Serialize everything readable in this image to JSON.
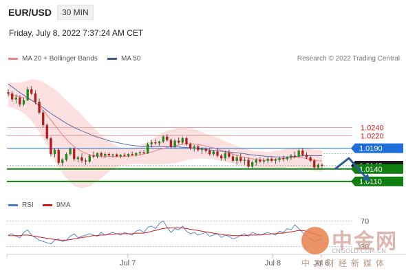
{
  "header": {
    "symbol": "EUR/USD",
    "timeframe": "30 MIN"
  },
  "datetime": "Friday, July 8, 2022 7:37:24 AM CET",
  "legend": {
    "bollinger": {
      "label": "MA 20 + Bollinger Bands",
      "color": "#f08080"
    },
    "ma50": {
      "label": "MA 50",
      "color": "#3a5a8c"
    }
  },
  "credit": "Research © 2022 Trading Central",
  "rsi_legend": {
    "rsi": {
      "label": "RSI",
      "color": "#4a7bd0"
    },
    "ma9": {
      "label": "9MA",
      "color": "#d11a1a"
    }
  },
  "watermark": {
    "text": "中金网",
    "url": "CNGOLD.COM.CN",
    "subtitle": "中文财经新媒体"
  },
  "chart_data": {
    "type": "candlestick",
    "ylim": [
      1.0075,
      1.0395
    ],
    "xlim": [
      0,
      100
    ],
    "x_ticks": [
      {
        "x": 35,
        "label": "Jul 7"
      },
      {
        "x": 77,
        "label": "Jul 8"
      },
      {
        "x": 91,
        "label": "Jul 8"
      }
    ],
    "levels": [
      {
        "name": "r2",
        "value": 1.024,
        "label": "1.0240",
        "color": "#d11a1a",
        "style": "red"
      },
      {
        "name": "r1",
        "value": 1.022,
        "label": "1.0220",
        "color": "#d11a1a",
        "style": "red"
      },
      {
        "name": "pivot",
        "value": 1.019,
        "label": "1.0190",
        "color": "#1e6fd9",
        "style": "blue"
      },
      {
        "name": "last",
        "value": 1.0148,
        "label": "1.0148",
        "color": "#111111",
        "style": "black"
      },
      {
        "name": "s1",
        "value": 1.014,
        "label": "1.0140",
        "color": "#0f7f0f",
        "style": "green"
      },
      {
        "name": "s2",
        "value": 1.011,
        "label": "1.0110",
        "color": "#0f7f0f",
        "style": "green"
      }
    ],
    "candles": [
      [
        1.0325,
        1.0333,
        1.0315,
        1.0322
      ],
      [
        1.0322,
        1.0328,
        1.0302,
        1.0308
      ],
      [
        1.0308,
        1.032,
        1.0298,
        1.0312
      ],
      [
        1.0312,
        1.0318,
        1.029,
        1.0296
      ],
      [
        1.0296,
        1.0312,
        1.0292,
        1.0306
      ],
      [
        1.0306,
        1.0338,
        1.0304,
        1.0332
      ],
      [
        1.0332,
        1.034,
        1.0318,
        1.0322
      ],
      [
        1.0322,
        1.033,
        1.0296,
        1.0302
      ],
      [
        1.0302,
        1.031,
        1.0272,
        1.0276
      ],
      [
        1.0276,
        1.0282,
        1.024,
        1.0246
      ],
      [
        1.0246,
        1.025,
        1.021,
        1.0214
      ],
      [
        1.0214,
        1.0218,
        1.017,
        1.0176
      ],
      [
        1.0176,
        1.019,
        1.0168,
        1.0186
      ],
      [
        1.0186,
        1.019,
        1.015,
        1.0155
      ],
      [
        1.0155,
        1.0166,
        1.0148,
        1.0162
      ],
      [
        1.0162,
        1.018,
        1.0158,
        1.0176
      ],
      [
        1.0176,
        1.0192,
        1.0172,
        1.0188
      ],
      [
        1.0188,
        1.0192,
        1.0158,
        1.0164
      ],
      [
        1.0164,
        1.0172,
        1.0156,
        1.0168
      ],
      [
        1.0168,
        1.0178,
        1.0155,
        1.016
      ],
      [
        1.016,
        1.0166,
        1.015,
        1.0158
      ],
      [
        1.0158,
        1.0176,
        1.0154,
        1.0172
      ],
      [
        1.0172,
        1.0182,
        1.0166,
        1.017
      ],
      [
        1.017,
        1.018,
        1.0166,
        1.0178
      ],
      [
        1.0178,
        1.0182,
        1.0168,
        1.0172
      ],
      [
        1.0172,
        1.018,
        1.0166,
        1.0176
      ],
      [
        1.0176,
        1.018,
        1.017,
        1.0173
      ],
      [
        1.0173,
        1.0177,
        1.0168,
        1.0175
      ],
      [
        1.0175,
        1.0178,
        1.0168,
        1.0171
      ],
      [
        1.0171,
        1.0176,
        1.0166,
        1.0174
      ],
      [
        1.0174,
        1.0179,
        1.017,
        1.0172
      ],
      [
        1.0172,
        1.0178,
        1.0168,
        1.0176
      ],
      [
        1.0176,
        1.0182,
        1.0172,
        1.0174
      ],
      [
        1.0174,
        1.018,
        1.017,
        1.0178
      ],
      [
        1.0178,
        1.0184,
        1.0174,
        1.018
      ],
      [
        1.018,
        1.0186,
        1.0176,
        1.0178
      ],
      [
        1.0178,
        1.0204,
        1.0176,
        1.02
      ],
      [
        1.02,
        1.021,
        1.0192,
        1.0204
      ],
      [
        1.0204,
        1.0212,
        1.0198,
        1.0202
      ],
      [
        1.0202,
        1.0208,
        1.0196,
        1.0206
      ],
      [
        1.0206,
        1.0222,
        1.0202,
        1.0218
      ],
      [
        1.0218,
        1.0224,
        1.0206,
        1.021
      ],
      [
        1.021,
        1.0214,
        1.019,
        1.0194
      ],
      [
        1.0194,
        1.0212,
        1.019,
        1.0208
      ],
      [
        1.0208,
        1.0216,
        1.02,
        1.0204
      ],
      [
        1.0204,
        1.0218,
        1.02,
        1.0214
      ],
      [
        1.0214,
        1.0218,
        1.0196,
        1.02
      ],
      [
        1.02,
        1.0204,
        1.0186,
        1.019
      ],
      [
        1.019,
        1.0198,
        1.0182,
        1.0194
      ],
      [
        1.0194,
        1.0198,
        1.0182,
        1.0186
      ],
      [
        1.0186,
        1.0192,
        1.0176,
        1.0188
      ],
      [
        1.0188,
        1.0192,
        1.018,
        1.0184
      ],
      [
        1.0184,
        1.019,
        1.0172,
        1.0176
      ],
      [
        1.0176,
        1.0186,
        1.0172,
        1.0182
      ],
      [
        1.0182,
        1.019,
        1.0168,
        1.0172
      ],
      [
        1.0172,
        1.0176,
        1.016,
        1.0166
      ],
      [
        1.0166,
        1.0184,
        1.016,
        1.0178
      ],
      [
        1.0178,
        1.0186,
        1.0166,
        1.017
      ],
      [
        1.017,
        1.0176,
        1.0156,
        1.016
      ],
      [
        1.016,
        1.0174,
        1.015,
        1.0168
      ],
      [
        1.0168,
        1.0178,
        1.0156,
        1.016
      ],
      [
        1.016,
        1.0168,
        1.015,
        1.0162
      ],
      [
        1.0162,
        1.0168,
        1.0142,
        1.0146
      ],
      [
        1.0146,
        1.016,
        1.0142,
        1.0156
      ],
      [
        1.0156,
        1.0166,
        1.0148,
        1.0162
      ],
      [
        1.0162,
        1.0168,
        1.0154,
        1.0158
      ],
      [
        1.0158,
        1.0166,
        1.0152,
        1.016
      ],
      [
        1.016,
        1.0168,
        1.0154,
        1.0164
      ],
      [
        1.0164,
        1.017,
        1.0156,
        1.016
      ],
      [
        1.016,
        1.0166,
        1.0152,
        1.0162
      ],
      [
        1.0162,
        1.017,
        1.0156,
        1.0166
      ],
      [
        1.0166,
        1.0172,
        1.0158,
        1.0164
      ],
      [
        1.0164,
        1.017,
        1.016,
        1.0168
      ],
      [
        1.0168,
        1.0176,
        1.0162,
        1.0172
      ],
      [
        1.0172,
        1.0182,
        1.0166,
        1.017
      ],
      [
        1.017,
        1.0188,
        1.0168,
        1.0184
      ],
      [
        1.0184,
        1.019,
        1.017,
        1.0174
      ],
      [
        1.0174,
        1.018,
        1.0164,
        1.0168
      ],
      [
        1.0168,
        1.0172,
        1.0156,
        1.016
      ],
      [
        1.016,
        1.0164,
        1.014,
        1.0144
      ],
      [
        1.0144,
        1.0154,
        1.014,
        1.015
      ],
      [
        1.015,
        1.0154,
        1.0142,
        1.0148
      ]
    ],
    "ma50": [
      1.0345,
      1.0338,
      1.0331,
      1.0324,
      1.0318,
      1.0312,
      1.0306,
      1.03,
      1.0294,
      1.0288,
      1.0281,
      1.0274,
      1.0268,
      1.0262,
      1.0256,
      1.025,
      1.0245,
      1.024,
      1.0236,
      1.0232,
      1.0228,
      1.0224,
      1.022,
      1.0217,
      1.0214,
      1.0211,
      1.0208,
      1.0206,
      1.0204,
      1.0202,
      1.02,
      1.0198,
      1.0197,
      1.0196,
      1.0195,
      1.0194,
      1.0194,
      1.0194,
      1.0194,
      1.0194,
      1.0194,
      1.0194,
      1.0193,
      1.0193,
      1.0193,
      1.0192,
      1.0192,
      1.0191,
      1.019,
      1.0189,
      1.0188,
      1.0187,
      1.0186,
      1.0185,
      1.0184,
      1.0183,
      1.0182,
      1.0181,
      1.018,
      1.0179,
      1.0178,
      1.0177,
      1.0175,
      1.0174,
      1.0173,
      1.0172,
      1.0171,
      1.017,
      1.017,
      1.0169,
      1.0169,
      1.0169,
      1.0169,
      1.017,
      1.017,
      1.0171,
      1.0172,
      1.0172,
      1.0172,
      1.0172,
      1.0172,
      1.0172
    ],
    "ma20": [
      1.032,
      1.0318,
      1.0316,
      1.0314,
      1.0312,
      1.031,
      1.0306,
      1.03,
      1.0292,
      1.0282,
      1.027,
      1.0258,
      1.0246,
      1.0234,
      1.0222,
      1.0212,
      1.0202,
      1.0194,
      1.0188,
      1.0182,
      1.0178,
      1.0174,
      1.0172,
      1.0171,
      1.017,
      1.017,
      1.017,
      1.017,
      1.017,
      1.017,
      1.017,
      1.0171,
      1.0172,
      1.0173,
      1.0174,
      1.0176,
      1.0178,
      1.0181,
      1.0184,
      1.0187,
      1.019,
      1.0192,
      1.0194,
      1.0196,
      1.0198,
      1.02,
      1.0201,
      1.0201,
      1.02,
      1.0199,
      1.0197,
      1.0195,
      1.0193,
      1.0191,
      1.0188,
      1.0185,
      1.0182,
      1.0179,
      1.0176,
      1.0173,
      1.017,
      1.0168,
      1.0166,
      1.0164,
      1.0163,
      1.0162,
      1.0161,
      1.0161,
      1.0162,
      1.0163,
      1.0164,
      1.0165,
      1.0166,
      1.0167,
      1.0168,
      1.0168,
      1.0167,
      1.0165,
      1.0163,
      1.0161,
      1.016,
      1.0159
    ],
    "bb_width": [
      0.003,
      0.003,
      0.0032,
      0.0034,
      0.0038,
      0.0044,
      0.005,
      0.0056,
      0.0062,
      0.0068,
      0.0074,
      0.008,
      0.0086,
      0.009,
      0.0092,
      0.0094,
      0.0095,
      0.0094,
      0.0092,
      0.0088,
      0.0082,
      0.0076,
      0.0068,
      0.006,
      0.0052,
      0.0044,
      0.0036,
      0.003,
      0.0026,
      0.0022,
      0.002,
      0.002,
      0.002,
      0.0021,
      0.0022,
      0.0024,
      0.0027,
      0.003,
      0.0033,
      0.0036,
      0.0038,
      0.004,
      0.0041,
      0.0042,
      0.0042,
      0.0041,
      0.004,
      0.0038,
      0.0036,
      0.0034,
      0.0032,
      0.003,
      0.0029,
      0.0028,
      0.0027,
      0.0026,
      0.0025,
      0.0024,
      0.0023,
      0.0022,
      0.0022,
      0.0021,
      0.0021,
      0.002,
      0.002,
      0.002,
      0.002,
      0.002,
      0.002,
      0.0021,
      0.0021,
      0.0022,
      0.0022,
      0.0023,
      0.0024,
      0.0024,
      0.0024,
      0.0025,
      0.0025,
      0.0026,
      0.0026,
      0.0026
    ],
    "forecast_path": [
      [
        95,
        1.014
      ],
      [
        99,
        1.0166
      ],
      [
        105,
        1.011
      ]
    ],
    "rsi_panel": {
      "ylim": [
        20,
        80
      ],
      "ticks": [
        {
          "value": 70,
          "label": "70"
        },
        {
          "value": 30,
          "label": "30"
        }
      ],
      "rsi": [
        48,
        50,
        46,
        44,
        52,
        56,
        48,
        44,
        40,
        38,
        36,
        34,
        40,
        42,
        38,
        40,
        46,
        50,
        44,
        46,
        48,
        50,
        48,
        46,
        52,
        48,
        50,
        52,
        50,
        48,
        52,
        50,
        48,
        54,
        56,
        52,
        60,
        62,
        58,
        66,
        70,
        60,
        52,
        58,
        56,
        62,
        54,
        50,
        52,
        48,
        50,
        52,
        46,
        48,
        50,
        44,
        48,
        46,
        42,
        44,
        48,
        50,
        46,
        52,
        50,
        48,
        50,
        52,
        50,
        48,
        54,
        52,
        58,
        56,
        64,
        58,
        52,
        46,
        42,
        38,
        40,
        42
      ],
      "ma9": [
        47,
        47,
        47,
        47,
        48,
        48,
        47,
        46,
        45,
        44,
        43,
        42,
        41,
        40,
        40,
        40,
        41,
        42,
        43,
        44,
        45,
        46,
        47,
        47,
        48,
        48,
        49,
        49,
        50,
        50,
        50,
        50,
        50,
        51,
        51,
        51,
        52,
        54,
        55,
        57,
        58,
        59,
        59,
        59,
        59,
        59,
        58,
        57,
        56,
        55,
        54,
        53,
        52,
        51,
        50,
        49,
        48,
        48,
        47,
        47,
        47,
        47,
        48,
        48,
        48,
        48,
        49,
        49,
        50,
        50,
        51,
        51,
        52,
        53,
        54,
        55,
        55,
        54,
        52,
        50,
        48,
        46
      ]
    }
  }
}
